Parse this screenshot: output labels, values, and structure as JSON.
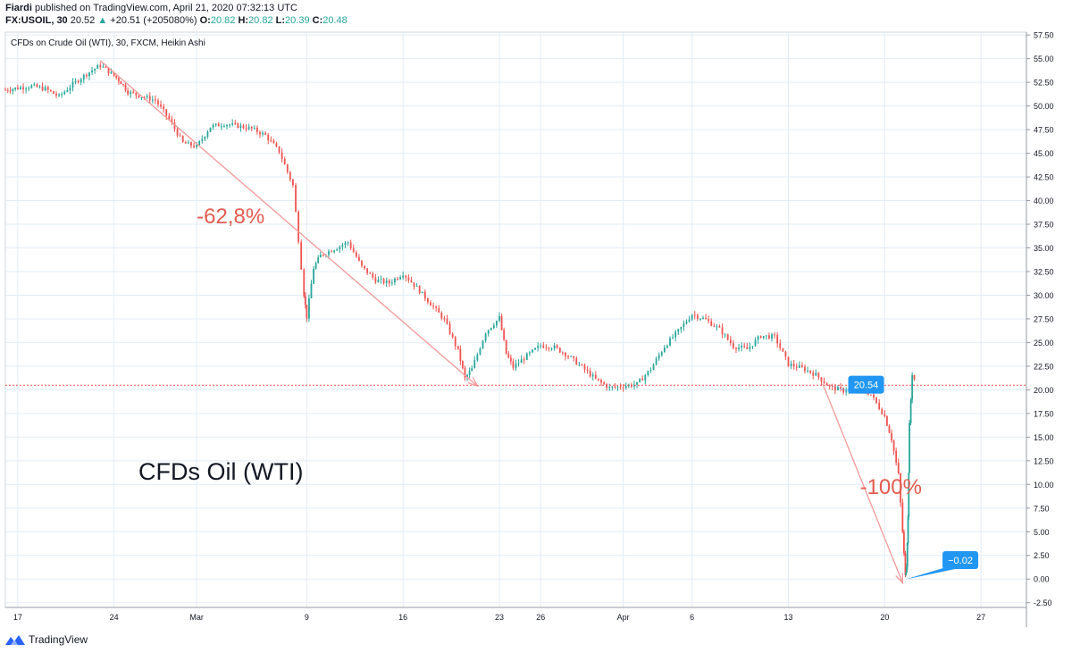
{
  "header": {
    "author": "Fiardi",
    "published": "published on TradingView.com, April 21, 2020 07:32:13 UTC",
    "symbol": "FX:USOIL, 30",
    "last": "20.52",
    "change": "+20.51 (+205080%)",
    "open_label": "O:",
    "open": "20.82",
    "high_label": "H:",
    "high": "20.82",
    "low_label": "L:",
    "low": "20.39",
    "close_label": "C:",
    "close": "20.48"
  },
  "footer": {
    "brand": "TradingView",
    "logo_icon": "tradingview-logo-icon"
  },
  "colors": {
    "up": "#26a69a",
    "down": "#ef5350",
    "annotation": "#e35b4f",
    "trend": "#f19a9a",
    "label_bg": "#2196f3",
    "hline": "#ef5350",
    "grid": "#e3ecf6"
  },
  "chart_data": {
    "type": "candlestick",
    "title": "CFDs on Crude Oil (WTI), 30, FXCM, Heikin Ashi",
    "watermark": "CFDs Oil (WTI)",
    "y_ticks": [
      "57.50",
      "55.00",
      "52.50",
      "50.00",
      "47.50",
      "45.00",
      "42.50",
      "40.00",
      "37.50",
      "35.00",
      "32.50",
      "30.00",
      "27.50",
      "25.00",
      "22.50",
      "20.00",
      "17.50",
      "15.00",
      "12.50",
      "10.00",
      "7.50",
      "5.00",
      "2.50",
      "0.00",
      "-2.50"
    ],
    "ylim": [
      -3.0,
      57.8
    ],
    "x_ticks": [
      {
        "t": 0,
        "label": "17"
      },
      {
        "t": 7,
        "label": "24"
      },
      {
        "t": 13,
        "label": "Mar"
      },
      {
        "t": 21,
        "label": "9"
      },
      {
        "t": 28,
        "label": "16"
      },
      {
        "t": 35,
        "label": "23"
      },
      {
        "t": 38,
        "label": "26"
      },
      {
        "t": 44,
        "label": "Apr"
      },
      {
        "t": 49,
        "label": "6"
      },
      {
        "t": 56,
        "label": "13"
      },
      {
        "t": 63,
        "label": "20"
      },
      {
        "t": 70,
        "label": "27"
      }
    ],
    "xlim": [
      -0.9,
      73.3
    ],
    "price_series": [
      [
        -0.9,
        51.7
      ],
      [
        0,
        51.9
      ],
      [
        1,
        52.1
      ],
      [
        2,
        51.8
      ],
      [
        3,
        51.0
      ],
      [
        4,
        52.3
      ],
      [
        5,
        53.4
      ],
      [
        6,
        54.3
      ],
      [
        7,
        53.2
      ],
      [
        7.5,
        52.5
      ],
      [
        8,
        51.5
      ],
      [
        9,
        51.0
      ],
      [
        10,
        50.6
      ],
      [
        11,
        48.6
      ],
      [
        12,
        46.1
      ],
      [
        13,
        45.7
      ],
      [
        14,
        47.8
      ],
      [
        15,
        48.1
      ],
      [
        16,
        47.9
      ],
      [
        17,
        47.6
      ],
      [
        18,
        46.9
      ],
      [
        19,
        45.2
      ],
      [
        20,
        41.6
      ],
      [
        20.8,
        30.1
      ],
      [
        21,
        27.7
      ],
      [
        21.5,
        32.9
      ],
      [
        22,
        34.2
      ],
      [
        23,
        34.9
      ],
      [
        24,
        35.6
      ],
      [
        25,
        33.0
      ],
      [
        26,
        31.6
      ],
      [
        27,
        31.3
      ],
      [
        28,
        32.3
      ],
      [
        29,
        30.8
      ],
      [
        30,
        29.1
      ],
      [
        31,
        27.4
      ],
      [
        32,
        24.1
      ],
      [
        32.5,
        21.2
      ],
      [
        33,
        22.2
      ],
      [
        34,
        26.1
      ],
      [
        35,
        27.6
      ],
      [
        35.5,
        23.8
      ],
      [
        36,
        22.4
      ],
      [
        37,
        23.6
      ],
      [
        38,
        24.7
      ],
      [
        39,
        24.5
      ],
      [
        40,
        23.6
      ],
      [
        41,
        22.4
      ],
      [
        42,
        21.1
      ],
      [
        43,
        20.2
      ],
      [
        44,
        20.4
      ],
      [
        45,
        20.6
      ],
      [
        46,
        22.2
      ],
      [
        47,
        24.6
      ],
      [
        48,
        26.2
      ],
      [
        49,
        28.0
      ],
      [
        50,
        27.4
      ],
      [
        51,
        26.4
      ],
      [
        52,
        24.6
      ],
      [
        53,
        24.3
      ],
      [
        54,
        25.7
      ],
      [
        55,
        25.6
      ],
      [
        56,
        22.7
      ],
      [
        57,
        22.3
      ],
      [
        58,
        21.6
      ],
      [
        59,
        20.3
      ],
      [
        60,
        19.9
      ],
      [
        61,
        20.4
      ],
      [
        62,
        19.5
      ],
      [
        63,
        17.2
      ],
      [
        63.5,
        14.8
      ],
      [
        64,
        11.0
      ],
      [
        64.3,
        5.0
      ],
      [
        64.5,
        0.3
      ],
      [
        64.6,
        1.5
      ],
      [
        64.7,
        6.5
      ],
      [
        64.8,
        16.3
      ],
      [
        65,
        21.7
      ],
      [
        65.3,
        20.6
      ]
    ],
    "current_price": 20.48,
    "price_labels": [
      {
        "value": "20.54",
        "t": 60.35,
        "price": 20.54,
        "at": 58.85,
        "at_price": 20.54
      },
      {
        "value": "−0.02",
        "t": 67.2,
        "price": 2.0,
        "at": 64.55,
        "at_price": -0.02
      }
    ],
    "annotations": [
      {
        "text": "-62,8%",
        "t": 13.0,
        "price": 37.6,
        "from": [
          6.0,
          54.8
        ],
        "to": [
          33.4,
          20.4
        ]
      },
      {
        "text": "-100%",
        "t": 61.2,
        "price": 9.0,
        "from": [
          58.5,
          20.6
        ],
        "to": [
          64.3,
          -0.4
        ]
      }
    ]
  }
}
